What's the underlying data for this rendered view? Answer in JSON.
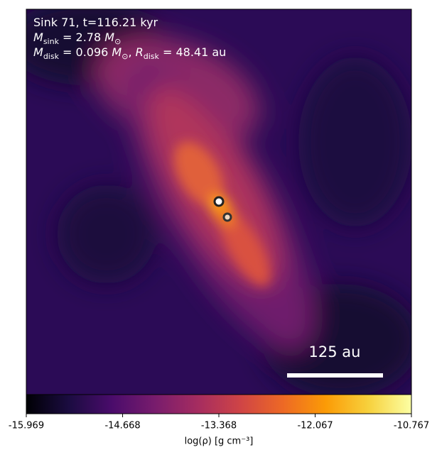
{
  "chart_data": {
    "type": "density-map",
    "annotations": [
      {
        "parts": [
          {
            "text": "Sink 71, t=116.21 kyr"
          }
        ]
      },
      {
        "parts": [
          {
            "text": "M",
            "italic": true
          },
          {
            "text": "sink",
            "sub": true
          },
          {
            "text": " = 2.78 "
          },
          {
            "text": "M",
            "italic": true
          },
          {
            "text": "⊙",
            "sub": true
          }
        ]
      },
      {
        "parts": [
          {
            "text": "M",
            "italic": true
          },
          {
            "text": "disk",
            "sub": true
          },
          {
            "text": " = 0.096 "
          },
          {
            "text": "M",
            "italic": true
          },
          {
            "text": "⊙",
            "sub": true
          },
          {
            "text": ", "
          },
          {
            "text": "R",
            "italic": true
          },
          {
            "text": "disk",
            "sub": true
          },
          {
            "text": " = 48.41 au"
          }
        ]
      }
    ],
    "scale_bar_label": "125 au",
    "colorbar_label": "log(ρ) [g cm⁻³]",
    "clim": [
      -15.969,
      -10.767
    ],
    "cticks": [
      -15.969,
      -14.668,
      -13.368,
      -12.067,
      -10.767
    ],
    "colormap": "inferno",
    "colormap_colors": [
      "#000004",
      "#1b0c41",
      "#4a0c6b",
      "#781c6d",
      "#a52c60",
      "#cf4446",
      "#ed6925",
      "#fb9b06",
      "#f7d13d",
      "#fcffa4"
    ]
  }
}
